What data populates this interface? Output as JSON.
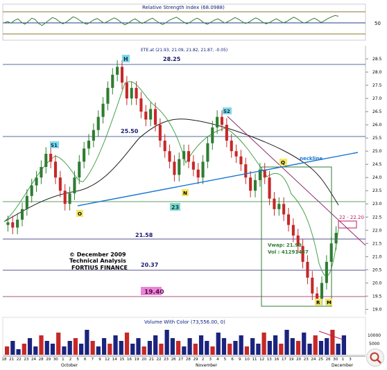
{
  "chart_data": [
    {
      "type": "line",
      "title": "Relative Strength Index (68.0988)",
      "level_label": "50",
      "ylim": [
        0,
        100
      ],
      "levels": [
        30,
        50,
        70
      ],
      "values": [
        48,
        52,
        47,
        55,
        60,
        50,
        44,
        52,
        62,
        58,
        46,
        40,
        48,
        56,
        64,
        60,
        52,
        45,
        50,
        58,
        66,
        62,
        55,
        48,
        44,
        50,
        57,
        61,
        54,
        47,
        52,
        58,
        63,
        57,
        49,
        42,
        47,
        55,
        60,
        53,
        46,
        51,
        57,
        62,
        55,
        48,
        43,
        49,
        56,
        61,
        65,
        58,
        51,
        45,
        50,
        57,
        62,
        56,
        48,
        44,
        50,
        56,
        60,
        54,
        47,
        52,
        58,
        64,
        59,
        52,
        46,
        50,
        57,
        63,
        58,
        50,
        45,
        49,
        55,
        60,
        54,
        48,
        52,
        59,
        65,
        60,
        53,
        47,
        51,
        57,
        62,
        56,
        49,
        55,
        61,
        66,
        70,
        68
      ]
    },
    {
      "type": "candlestick",
      "symbol_label": "ETE.at (21.93, 21.09, 21.82, 21.87, -0.05)",
      "ylim": [
        18.8,
        29.0
      ],
      "y_ticks": [
        "28.5",
        "28.0",
        "27.5",
        "27.0",
        "26.5",
        "26.0",
        "25.5",
        "25.0",
        "24.5",
        "24.0",
        "23.5",
        "23.0",
        "22.5",
        "22.0",
        "21.5",
        "21.0",
        "20.5",
        "20.0",
        "19.5",
        "19.0"
      ],
      "x_ticks": [
        "18",
        "21",
        "22",
        "23",
        "24",
        "28",
        "29",
        "30",
        "1",
        "2",
        "5",
        "6",
        "7",
        "9",
        "12",
        "14",
        "15",
        "16",
        "19",
        "20",
        "21",
        "22",
        "23",
        "26",
        "27",
        "28",
        "29",
        "2",
        "3",
        "4",
        "5",
        "6",
        "9",
        "10",
        "11",
        "12",
        "13",
        "16",
        "17",
        "19",
        "20",
        "23",
        "24",
        "25",
        "26",
        "30",
        "1",
        "3"
      ],
      "months": [
        "October",
        "November",
        "December"
      ],
      "closes": [
        22.3,
        22.1,
        22.4,
        22.8,
        23.3,
        23.7,
        24.0,
        24.4,
        24.9,
        24.6,
        24.0,
        23.5,
        23.0,
        23.4,
        24.0,
        24.6,
        25.1,
        25.4,
        25.8,
        26.3,
        26.8,
        27.4,
        27.9,
        28.2,
        27.6,
        27.0,
        27.4,
        27.0,
        26.5,
        26.2,
        26.6,
        26.0,
        25.4,
        25.0,
        24.6,
        24.1,
        24.7,
        25.0,
        24.6,
        24.3,
        24.0,
        24.6,
        25.3,
        25.9,
        26.3,
        26.0,
        25.4,
        25.0,
        24.8,
        24.5,
        24.0,
        23.5,
        23.9,
        24.3,
        24.0,
        23.2,
        22.8,
        23.0,
        22.6,
        22.2,
        21.8,
        21.4,
        20.8,
        20.2,
        19.6,
        19.4,
        20.0,
        20.8,
        21.5,
        21.9
      ],
      "horizontal_levels": [
        "28.25",
        "25.50",
        "23",
        "21.58",
        "20.37",
        "19.40"
      ],
      "pattern_labels": [
        "S1",
        "H",
        "S2",
        "N",
        "O",
        "Q",
        "R",
        "M"
      ],
      "annotations": {
        "neckline": "neckline",
        "target": "22 - 22.20",
        "vwap": "Vwap: 21.99",
        "vol": "Vol : 41291437",
        "copyright": "© December 2009",
        "ta": "Technical Analysis",
        "firm": "FORTIUS FINANCE"
      }
    },
    {
      "type": "bar",
      "title": "Volume With Color (73,556.00, 0)",
      "y_ticks": [
        "10000",
        "5000"
      ],
      "values": [
        3,
        5,
        2,
        4,
        6,
        3,
        7,
        5,
        4,
        8,
        3,
        5,
        6,
        4,
        9,
        5,
        3,
        6,
        4,
        7,
        5,
        8,
        4,
        6,
        3,
        5,
        7,
        4,
        9,
        6,
        5,
        3,
        6,
        4,
        7,
        5,
        3,
        8,
        6,
        4,
        5,
        7,
        3,
        6,
        4,
        8,
        5,
        7,
        4,
        9,
        6,
        5,
        8,
        4,
        7,
        5,
        6,
        9,
        4,
        7
      ]
    }
  ]
}
